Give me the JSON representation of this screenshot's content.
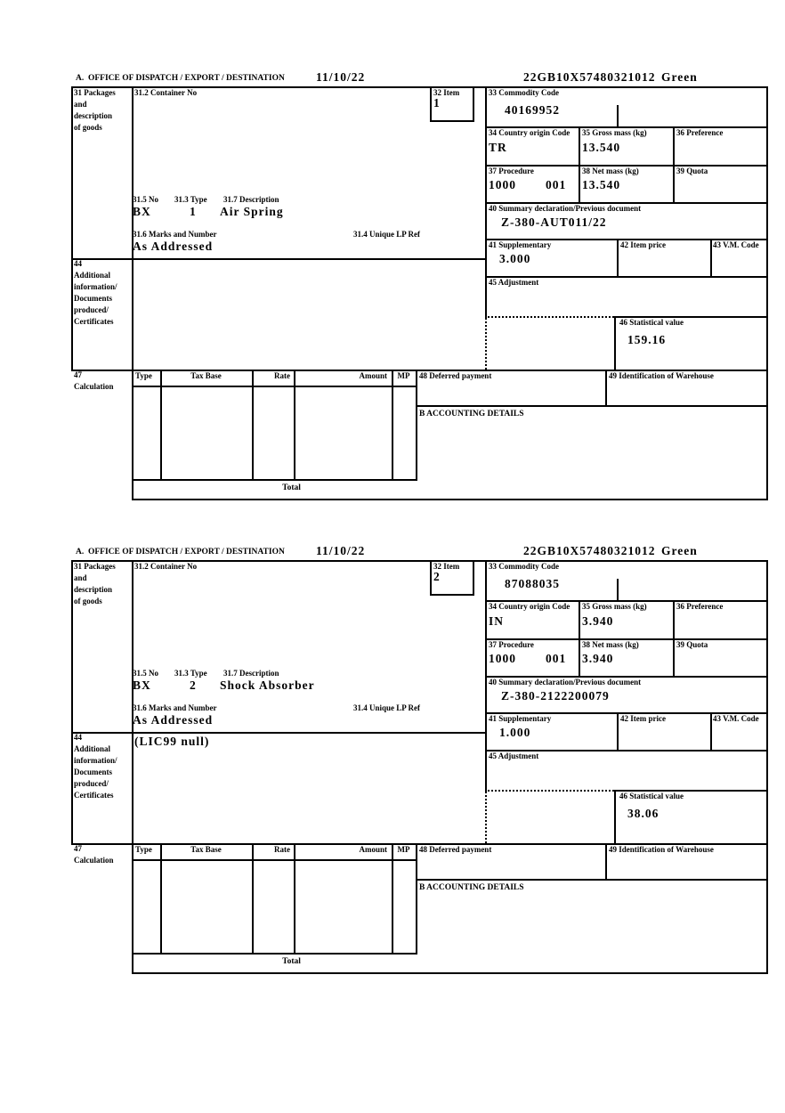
{
  "document": {
    "section_title": "A.  OFFICE OF DISPATCH / EXPORT / DESTINATION",
    "date": "11/10/22",
    "reference": "22GB10X57480321012",
    "routing": "Green"
  },
  "labels": {
    "box31_line1": "31 Packages",
    "box31_line2": "and",
    "box31_line3": "description",
    "box31_line4": "of goods",
    "container_no": "31.2 Container No",
    "item": "32 Item",
    "commodity_code": "33 Commodity Code",
    "country_origin": "34 Country origin Code",
    "gross_mass": "35 Gross mass (kg)",
    "preference": "36 Preference",
    "procedure": "37 Procedure",
    "net_mass": "38 Net mass (kg)",
    "quota": "39 Quota",
    "summary_declaration": "40 Summary declaration/Previous document",
    "pkg_no": "31.5 No",
    "pkg_type": "31.3 Type",
    "pkg_description": "31.7 Description",
    "marks_and_number": "31.6 Marks and Number",
    "unique_lp_ref": "31.4 Unique LP Ref",
    "supplementary": "41 Supplementary",
    "item_price": "42 Item price",
    "vm_code": "43 V.M. Code",
    "box44_line1": "44",
    "box44_line2": "Additional",
    "box44_line3": "information/",
    "box44_line4": "Documents",
    "box44_line5": "produced/",
    "box44_line6": "Certificates",
    "adjustment": "45 Adjustment",
    "statistical_value": "46 Statistical value",
    "box47_line1": "47",
    "box47_line2": "Calculation",
    "col_type": "Type",
    "col_tax_base": "Tax Base",
    "col_rate": "Rate",
    "col_amount": "Amount",
    "col_mp": "MP",
    "deferred_payment": "48 Deferred payment",
    "warehouse_id": "49 Identification of Warehouse",
    "accounting_details": "B ACCOUNTING DETAILS",
    "total": "Total"
  },
  "items": [
    {
      "item_no": "1",
      "commodity_code": "40169952",
      "country_origin": "TR",
      "gross_mass": "13.540",
      "procedure_main": "1000",
      "procedure_additional": "001",
      "net_mass": "13.540",
      "previous_document": "Z-380-AUT011/22",
      "package_kind": "BX",
      "package_count": "1",
      "goods_description": "Air Spring",
      "marks": "As Addressed",
      "additional_information": "",
      "supplementary_units": "3.000",
      "statistical_value": "159.16"
    },
    {
      "item_no": "2",
      "commodity_code": "87088035",
      "country_origin": "IN",
      "gross_mass": "3.940",
      "procedure_main": "1000",
      "procedure_additional": "001",
      "net_mass": "3.940",
      "previous_document": "Z-380-2122200079",
      "package_kind": "BX",
      "package_count": "2",
      "goods_description": "Shock Absorber",
      "marks": "As Addressed",
      "additional_information": "(LIC99 null)",
      "supplementary_units": "1.000",
      "statistical_value": "38.06"
    }
  ]
}
